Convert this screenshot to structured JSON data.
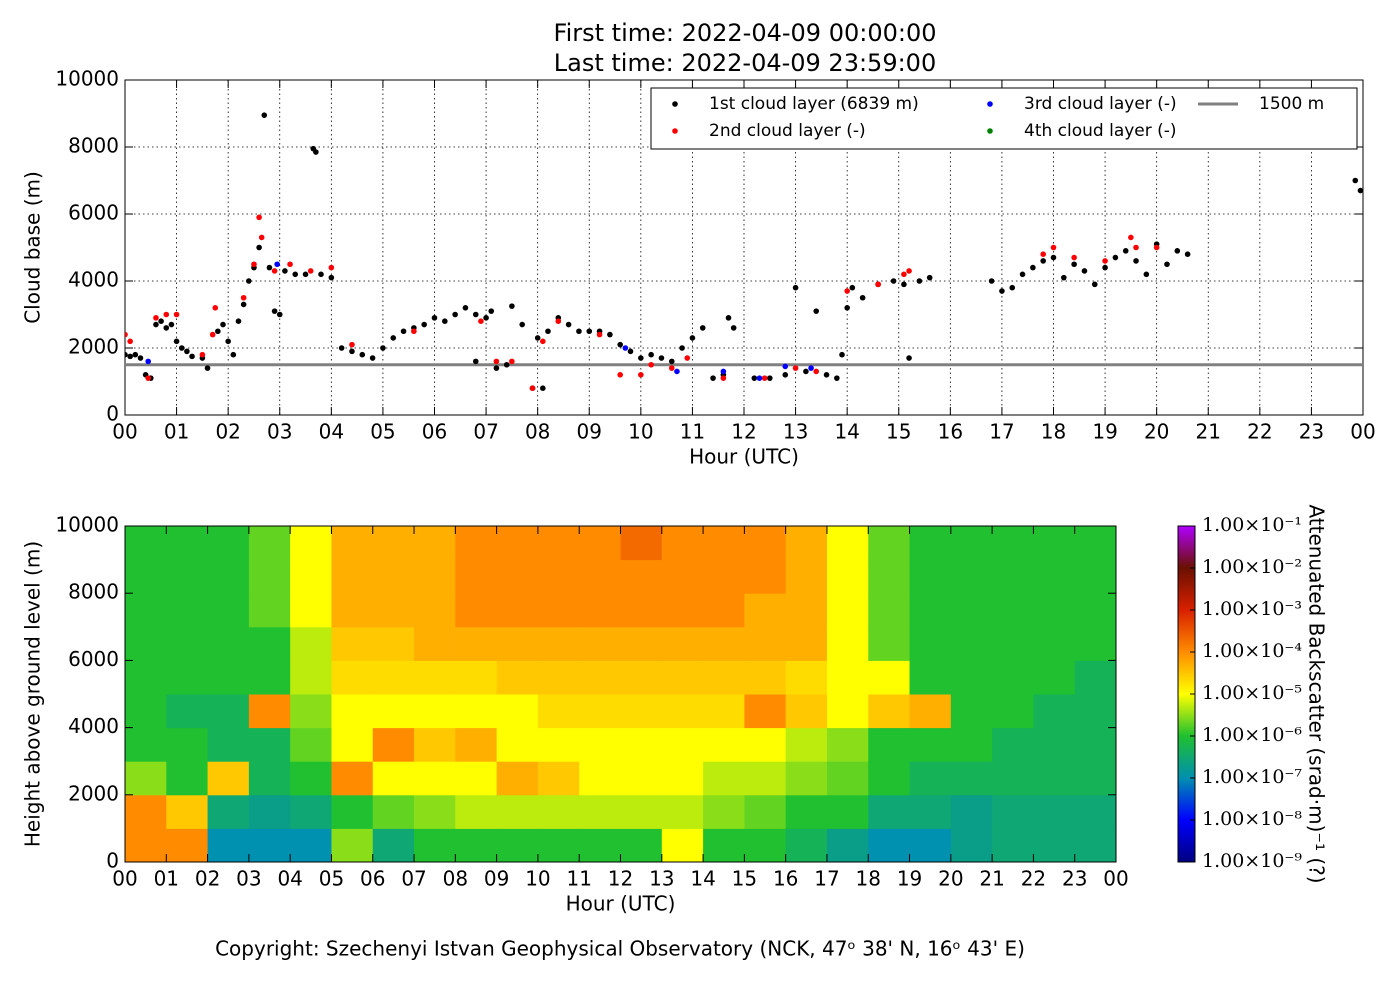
{
  "figure": {
    "title": [
      "First time: 2022-04-09 00:00:00",
      "Last time: 2022-04-09 23:59:00"
    ],
    "footer": "Copyright: Szechenyi Istvan Geophysical Observatory (NCK, 47ᵒ 38' N, 16ᵒ 43' E)"
  },
  "chart_data": [
    {
      "type": "scatter",
      "xlabel": "Hour (UTC)",
      "ylabel": "Cloud base (m)",
      "grid": true,
      "legend": "upper right",
      "xlim": [
        0,
        24
      ],
      "ylim": [
        0,
        10000
      ],
      "xticks": [
        {
          "value": 0,
          "label": "00"
        },
        {
          "value": 1,
          "label": "01"
        },
        {
          "value": 2,
          "label": "02"
        },
        {
          "value": 3,
          "label": "03"
        },
        {
          "value": 4,
          "label": "04"
        },
        {
          "value": 5,
          "label": "05"
        },
        {
          "value": 6,
          "label": "06"
        },
        {
          "value": 7,
          "label": "07"
        },
        {
          "value": 8,
          "label": "08"
        },
        {
          "value": 9,
          "label": "09"
        },
        {
          "value": 10,
          "label": "10"
        },
        {
          "value": 11,
          "label": "11"
        },
        {
          "value": 12,
          "label": "12"
        },
        {
          "value": 13,
          "label": "13"
        },
        {
          "value": 14,
          "label": "14"
        },
        {
          "value": 15,
          "label": "15"
        },
        {
          "value": 16,
          "label": "16"
        },
        {
          "value": 17,
          "label": "17"
        },
        {
          "value": 18,
          "label": "18"
        },
        {
          "value": 19,
          "label": "19"
        },
        {
          "value": 20,
          "label": "20"
        },
        {
          "value": 21,
          "label": "21"
        },
        {
          "value": 22,
          "label": "22"
        },
        {
          "value": 23,
          "label": "23"
        },
        {
          "value": 24,
          "label": "00"
        }
      ],
      "yticks": [
        0,
        2000,
        4000,
        6000,
        8000,
        10000
      ],
      "series": [
        {
          "name": "1st cloud layer (6839 m)",
          "color": "#000000",
          "x": [
            0.0,
            0.1,
            0.2,
            0.3,
            0.4,
            0.5,
            0.6,
            0.7,
            0.8,
            0.9,
            1.0,
            1.1,
            1.2,
            1.3,
            1.5,
            1.6,
            1.8,
            1.9,
            2.0,
            2.1,
            2.2,
            2.3,
            2.4,
            2.5,
            2.6,
            2.7,
            2.8,
            2.9,
            3.0,
            3.1,
            3.3,
            3.5,
            3.65,
            3.7,
            3.8,
            4.0,
            4.2,
            4.4,
            4.6,
            4.8,
            5.0,
            5.2,
            5.4,
            5.6,
            5.8,
            6.0,
            6.2,
            6.4,
            6.6,
            6.8,
            7.0,
            7.1,
            6.8,
            7.2,
            7.4,
            7.5,
            7.7,
            7.9,
            8.0,
            8.1,
            8.2,
            8.4,
            8.6,
            8.8,
            9.0,
            9.2,
            9.4,
            9.6,
            9.8,
            10.0,
            10.2,
            10.4,
            10.6,
            10.8,
            11.0,
            11.2,
            11.4,
            11.6,
            11.7,
            11.8,
            12.2,
            12.5,
            12.8,
            13.0,
            13.2,
            13.4,
            13.6,
            13.8,
            13.9,
            14.0,
            14.1,
            14.3,
            14.6,
            14.9,
            15.1,
            15.2,
            15.4,
            15.6,
            16.8,
            17.0,
            17.2,
            17.4,
            17.6,
            17.8,
            18.0,
            18.2,
            18.4,
            18.6,
            18.8,
            19.0,
            19.2,
            19.4,
            19.6,
            19.8,
            20.0,
            20.2,
            20.4,
            20.6,
            23.85,
            23.95
          ],
          "values": [
            1800,
            1750,
            1800,
            1700,
            1200,
            1100,
            2700,
            2800,
            2600,
            2700,
            2200,
            2000,
            1900,
            1750,
            1700,
            1400,
            2500,
            2700,
            2200,
            1800,
            2800,
            3300,
            4000,
            4400,
            5000,
            8950,
            4400,
            3100,
            3000,
            4300,
            4200,
            4200,
            7950,
            7850,
            4200,
            4100,
            2000,
            1900,
            1800,
            1700,
            2000,
            2300,
            2500,
            2600,
            2700,
            2900,
            2800,
            3000,
            3200,
            3000,
            2900,
            3100,
            1600,
            1400,
            1500,
            3250,
            2700,
            800,
            2300,
            800,
            2500,
            2900,
            2700,
            2500,
            2500,
            2500,
            2400,
            2100,
            1900,
            1700,
            1800,
            1700,
            1600,
            2000,
            2300,
            2600,
            1100,
            1200,
            2900,
            2600,
            1100,
            1100,
            1200,
            3800,
            1300,
            3100,
            1200,
            1100,
            1800,
            3200,
            3800,
            3500,
            3900,
            4000,
            3900,
            1700,
            4000,
            4100,
            4000,
            3700,
            3800,
            4200,
            4400,
            4600,
            4700,
            4100,
            4500,
            4300,
            3900,
            4400,
            4700,
            4900,
            4600,
            4200,
            5100,
            4500,
            4900,
            4800,
            7000,
            6700
          ]
        },
        {
          "name": "2nd cloud layer (-)",
          "color": "#ff0000",
          "x": [
            0.0,
            0.1,
            0.45,
            0.6,
            0.8,
            1.0,
            1.5,
            1.7,
            1.75,
            2.3,
            2.5,
            2.6,
            2.65,
            2.9,
            3.2,
            3.6,
            4.0,
            4.4,
            5.6,
            6.9,
            7.2,
            7.5,
            7.9,
            8.1,
            8.4,
            9.2,
            9.6,
            10.0,
            10.2,
            10.6,
            10.9,
            11.6,
            12.4,
            13.0,
            13.4,
            14.0,
            14.6,
            15.1,
            15.2,
            17.8,
            18.0,
            18.4,
            19.0,
            19.5,
            19.6,
            20.0
          ],
          "values": [
            2400,
            2200,
            1100,
            2900,
            3000,
            3000,
            1800,
            2400,
            3200,
            3500,
            4500,
            5900,
            5300,
            4300,
            4500,
            4300,
            4400,
            2100,
            2500,
            2800,
            1600,
            1600,
            800,
            2200,
            2800,
            2400,
            1200,
            1200,
            1500,
            1400,
            1700,
            1100,
            1100,
            1400,
            1300,
            3700,
            3900,
            4200,
            4300,
            4800,
            5000,
            4700,
            4600,
            5300,
            5000,
            5000
          ]
        },
        {
          "name": "3rd cloud layer (-)",
          "color": "#0000ff",
          "x": [
            0.45,
            2.95,
            9.7,
            10.7,
            11.6,
            12.3,
            12.8,
            13.3
          ],
          "values": [
            1600,
            4500,
            2000,
            1300,
            1300,
            1100,
            1450,
            1400
          ]
        },
        {
          "name": "4th cloud layer (-)",
          "color": "#008000",
          "x": [],
          "values": []
        }
      ],
      "hlines": [
        {
          "name": "1500 m",
          "value": 1500,
          "color": "#808080"
        }
      ]
    },
    {
      "type": "heatmap",
      "xlabel": "Hour (UTC)",
      "ylabel": "Height above ground level (m)",
      "cbar_label": "Attenuated Backscatter (srad·m)⁻¹ (?)",
      "xlim": [
        0,
        24
      ],
      "ylim": [
        0,
        10000
      ],
      "xticks": [
        {
          "value": 0,
          "label": "00"
        },
        {
          "value": 1,
          "label": "01"
        },
        {
          "value": 2,
          "label": "02"
        },
        {
          "value": 3,
          "label": "03"
        },
        {
          "value": 4,
          "label": "04"
        },
        {
          "value": 5,
          "label": "05"
        },
        {
          "value": 6,
          "label": "06"
        },
        {
          "value": 7,
          "label": "07"
        },
        {
          "value": 8,
          "label": "08"
        },
        {
          "value": 9,
          "label": "09"
        },
        {
          "value": 10,
          "label": "10"
        },
        {
          "value": 11,
          "label": "11"
        },
        {
          "value": 12,
          "label": "12"
        },
        {
          "value": 13,
          "label": "13"
        },
        {
          "value": 14,
          "label": "14"
        },
        {
          "value": 15,
          "label": "15"
        },
        {
          "value": 16,
          "label": "16"
        },
        {
          "value": 17,
          "label": "17"
        },
        {
          "value": 18,
          "label": "18"
        },
        {
          "value": 19,
          "label": "19"
        },
        {
          "value": 20,
          "label": "20"
        },
        {
          "value": 21,
          "label": "21"
        },
        {
          "value": 22,
          "label": "22"
        },
        {
          "value": 23,
          "label": "23"
        },
        {
          "value": 24,
          "label": "00"
        }
      ],
      "yticks": [
        0,
        2000,
        4000,
        6000,
        8000,
        10000
      ],
      "x_bins": [
        0,
        1,
        2,
        3,
        4,
        5,
        6,
        7,
        8,
        9,
        10,
        11,
        12,
        13,
        14,
        15,
        16,
        17,
        18,
        19,
        20,
        21,
        22,
        23,
        24
      ],
      "y_bins": [
        0,
        1000,
        2000,
        3000,
        4000,
        5000,
        6000,
        7000,
        8000,
        9000,
        10000
      ],
      "log_color": true,
      "zlim": [
        1e-09,
        0.1
      ],
      "colorscale": [
        "#00007f",
        "#0000ff",
        "#0090b0",
        "#20c030",
        "#ffff00",
        "#ff8c00",
        "#d82000",
        "#6a1000",
        "#b000ff"
      ],
      "cticks": [
        {
          "value": 1e-09,
          "label": "1.00×10⁻⁹"
        },
        {
          "value": 1e-08,
          "label": "1.00×10⁻⁸"
        },
        {
          "value": 1e-07,
          "label": "1.00×10⁻⁷"
        },
        {
          "value": 1e-06,
          "label": "1.00×10⁻⁶"
        },
        {
          "value": 1e-05,
          "label": "1.00×10⁻⁵"
        },
        {
          "value": 0.0001,
          "label": "1.00×10⁻⁴"
        },
        {
          "value": 0.001,
          "label": "1.00×10⁻³"
        },
        {
          "value": 0.01,
          "label": "1.00×10⁻²"
        },
        {
          "value": 0.1,
          "label": "1.00×10⁻¹"
        }
      ],
      "z": [
        [
          0.0001,
          0.0001,
          3e-06,
          1e-06,
          1e-06,
          1e-06,
          1e-06,
          1e-06,
          1e-06,
          1e-06
        ],
        [
          0.0001,
          3e-05,
          1e-06,
          1e-06,
          5e-07,
          1e-06,
          1e-06,
          1e-06,
          1e-06,
          1e-06
        ],
        [
          1e-07,
          3e-07,
          3e-05,
          5e-07,
          5e-07,
          1e-06,
          1e-06,
          1e-06,
          1e-06,
          1e-06
        ],
        [
          1e-07,
          2e-07,
          5e-07,
          5e-07,
          0.0001,
          1e-06,
          1e-06,
          2e-06,
          2e-06,
          2e-06
        ],
        [
          1e-07,
          3e-07,
          1e-06,
          2e-06,
          3e-06,
          5e-06,
          5e-06,
          1e-05,
          1e-05,
          1e-05
        ],
        [
          3e-06,
          1e-06,
          0.0001,
          1e-05,
          1e-05,
          2e-05,
          3e-05,
          5e-05,
          5e-05,
          5e-05
        ],
        [
          3e-07,
          2e-06,
          1e-05,
          0.0001,
          1e-05,
          2e-05,
          3e-05,
          5e-05,
          5e-05,
          5e-05
        ],
        [
          1e-06,
          3e-06,
          1e-05,
          3e-05,
          1e-05,
          2e-05,
          5e-05,
          5e-05,
          5e-05,
          5e-05
        ],
        [
          1e-06,
          5e-06,
          1e-05,
          5e-05,
          1e-05,
          2e-05,
          5e-05,
          0.0001,
          0.0001,
          0.0001
        ],
        [
          1e-06,
          5e-06,
          5e-05,
          1e-05,
          1e-05,
          3e-05,
          5e-05,
          0.0001,
          0.0001,
          0.0001
        ],
        [
          1e-06,
          5e-06,
          3e-05,
          1e-05,
          2e-05,
          3e-05,
          5e-05,
          0.0001,
          0.0001,
          0.0001
        ],
        [
          1e-06,
          5e-06,
          1e-05,
          1e-05,
          2e-05,
          3e-05,
          5e-05,
          0.0001,
          0.0001,
          0.0001
        ],
        [
          1e-06,
          5e-06,
          1e-05,
          1e-05,
          2e-05,
          3e-05,
          5e-05,
          0.0001,
          0.0001,
          0.0002
        ],
        [
          1e-05,
          5e-06,
          1e-05,
          1e-05,
          2e-05,
          3e-05,
          5e-05,
          0.0001,
          0.0001,
          0.0001
        ],
        [
          1e-06,
          3e-06,
          5e-06,
          1e-05,
          2e-05,
          3e-05,
          5e-05,
          0.0001,
          0.0001,
          0.0001
        ],
        [
          1e-06,
          2e-06,
          5e-06,
          1e-05,
          0.0001,
          3e-05,
          5e-05,
          5e-05,
          0.0001,
          0.0001
        ],
        [
          5e-07,
          1e-06,
          3e-06,
          5e-06,
          3e-05,
          2e-05,
          5e-05,
          5e-05,
          5e-05,
          5e-05
        ],
        [
          2e-07,
          1e-06,
          2e-06,
          3e-06,
          1e-05,
          1e-05,
          1e-05,
          1e-05,
          1e-05,
          1e-05
        ],
        [
          1e-07,
          3e-07,
          1e-06,
          1e-06,
          3e-05,
          1e-05,
          2e-06,
          2e-06,
          2e-06,
          2e-06
        ],
        [
          1e-07,
          3e-07,
          5e-07,
          1e-06,
          5e-05,
          1e-06,
          1e-06,
          1e-06,
          1e-06,
          1e-06
        ],
        [
          2e-07,
          2e-07,
          5e-07,
          1e-06,
          1e-06,
          1e-06,
          1e-06,
          1e-06,
          1e-06,
          1e-06
        ],
        [
          3e-07,
          3e-07,
          5e-07,
          5e-07,
          1e-06,
          1e-06,
          1e-06,
          1e-06,
          1e-06,
          1e-06
        ],
        [
          3e-07,
          3e-07,
          5e-07,
          5e-07,
          5e-07,
          1e-06,
          1e-06,
          1e-06,
          1e-06,
          1e-06
        ],
        [
          3e-07,
          3e-07,
          5e-07,
          5e-07,
          5e-07,
          5e-07,
          1e-06,
          1e-06,
          1e-06,
          1e-06
        ]
      ]
    }
  ]
}
